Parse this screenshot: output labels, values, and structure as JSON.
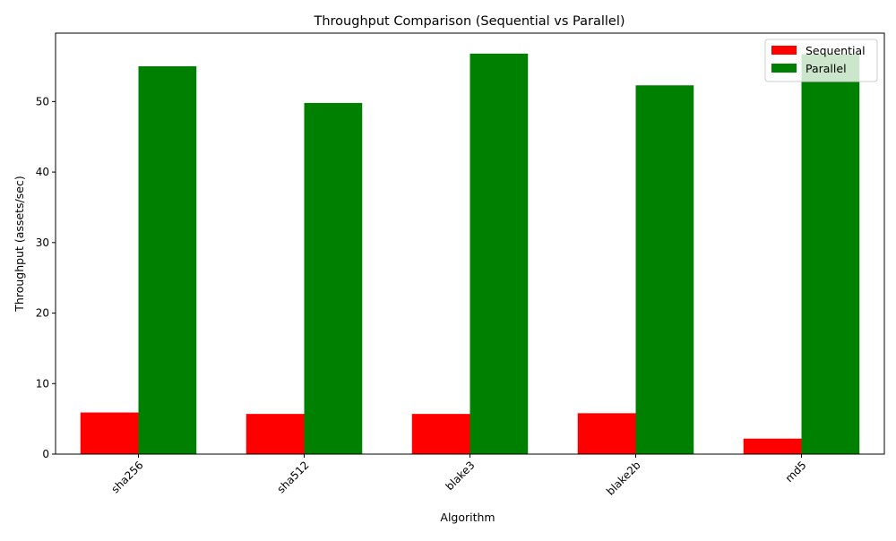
{
  "chart_data": {
    "type": "bar",
    "title": "Throughput Comparison (Sequential vs Parallel)",
    "xlabel": "Algorithm",
    "ylabel": "Throughput (assets/sec)",
    "categories": [
      "sha256",
      "sha512",
      "blake3",
      "blake2b",
      "md5"
    ],
    "series": [
      {
        "name": "Sequential",
        "color": "#ff0000",
        "values": [
          5.9,
          5.7,
          5.7,
          5.8,
          2.2
        ]
      },
      {
        "name": "Parallel",
        "color": "#008000",
        "values": [
          55.0,
          49.8,
          56.8,
          52.3,
          56.7
        ]
      }
    ],
    "ylim": [
      0,
      59.7
    ],
    "yticks": [
      0,
      10,
      20,
      30,
      40,
      50
    ],
    "legend": "top-right",
    "grid": false
  }
}
